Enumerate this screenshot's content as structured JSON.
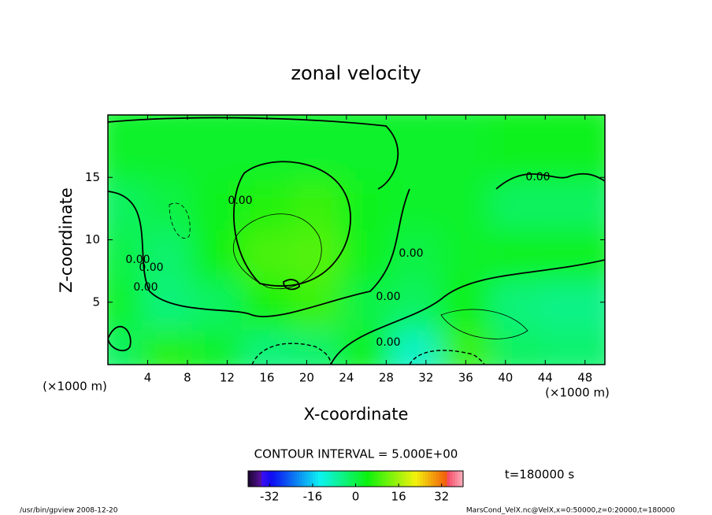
{
  "chart_data": {
    "type": "contour",
    "title": "zonal velocity",
    "xlabel": "X-coordinate",
    "ylabel": "Z-coordinate",
    "x_unit": "(×1000 m)",
    "xlim": [
      0,
      50
    ],
    "xticks": [
      4,
      8,
      12,
      16,
      20,
      24,
      28,
      32,
      36,
      40,
      44,
      48
    ],
    "ylim": [
      0,
      20
    ],
    "yticks": [
      5,
      10,
      15
    ],
    "x": [
      2.5,
      7.5,
      12.5,
      17.5,
      22.5,
      27.5,
      32.5,
      37.5,
      42.5,
      47.5
    ],
    "y": [
      2,
      6,
      10,
      14,
      18
    ],
    "z": [
      [
        -2,
        6,
        2,
        -4,
        -3,
        4,
        -10,
        8,
        -2,
        -3
      ],
      [
        2,
        -4,
        -2,
        5,
        8,
        0,
        -2,
        4,
        -4,
        -5
      ],
      [
        0,
        -3,
        4,
        9,
        10,
        3,
        0,
        2,
        3,
        3
      ],
      [
        -2,
        0,
        3,
        6,
        8,
        3,
        2,
        2,
        -2,
        -2
      ],
      [
        2,
        2,
        2,
        2,
        2,
        2,
        2,
        2,
        3,
        3
      ]
    ],
    "contour_labels": [
      "0.00",
      "0.00",
      "0.00",
      "0.00",
      "0.00",
      "0.00",
      "0.00",
      "0.00"
    ],
    "contour_interval": "CONTOUR INTERVAL = 5.000E+00",
    "colorbar_lim": [
      -40,
      40
    ],
    "colorbar_ticks": [
      -32,
      -16,
      0,
      16,
      32
    ],
    "time_label": "t=180000 s",
    "footer_left": "/usr/bin/gpview  2008-12-20",
    "footer_right": "MarsCond_VelX.nc@VelX,x=0:50000,z=0:20000,t=180000"
  }
}
